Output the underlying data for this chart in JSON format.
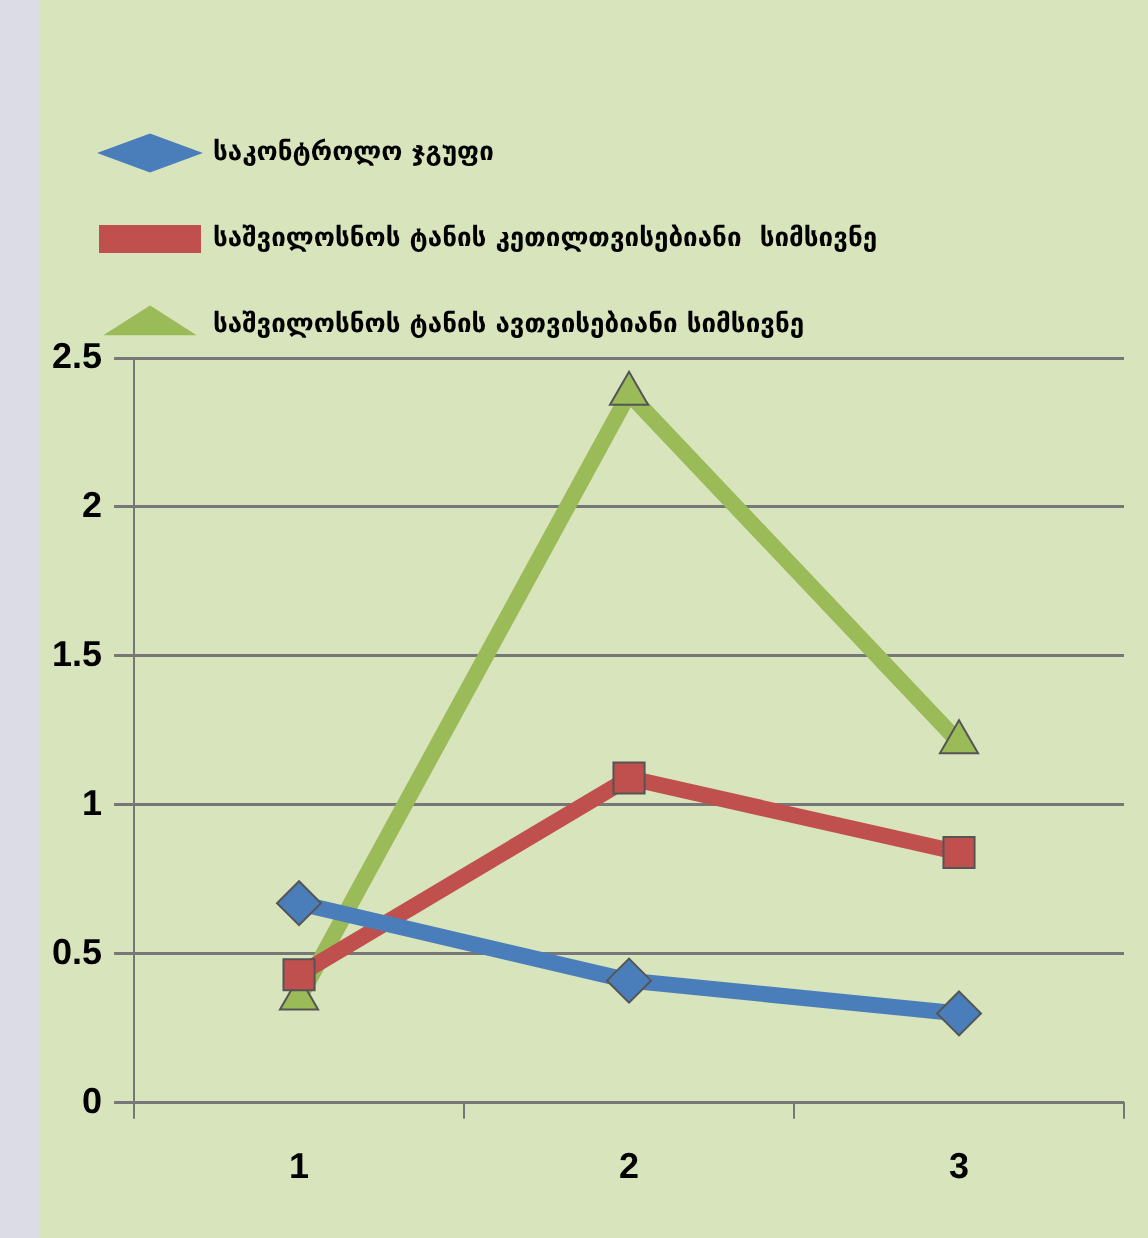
{
  "chart_data": {
    "type": "line",
    "categories": [
      "1",
      "2",
      "3"
    ],
    "series": [
      {
        "name": "საკონტროლო ჯგუფი",
        "color": "#4a7ebb",
        "marker": "diamond",
        "values": [
          0.67,
          0.41,
          0.3
        ]
      },
      {
        "name": "საშვილოსნოს ტანის კეთილთვისებიანი  სიმსივნე",
        "color": "#c0504d",
        "marker": "square",
        "values": [
          0.43,
          1.09,
          0.84
        ]
      },
      {
        "name": "საშვილოსნოს ტანის ავთვისებიანი სიმსივნე",
        "color": "#9bbb59",
        "marker": "triangle",
        "values": [
          0.35,
          2.38,
          1.21
        ]
      }
    ],
    "ylim": [
      0,
      2.5
    ],
    "yticks": [
      0,
      0.5,
      1,
      1.5,
      2,
      2.5
    ],
    "grid": "y",
    "legend": "top left"
  }
}
